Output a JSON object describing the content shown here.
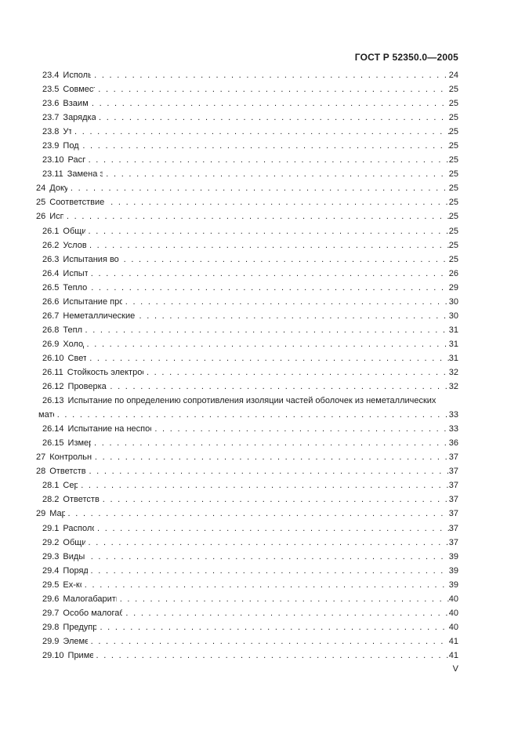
{
  "header": {
    "doc_code": "ГОСТ Р 52350.0—2005"
  },
  "footer": {
    "page_number": "V"
  },
  "toc": {
    "entries": [
      {
        "num": "23.4",
        "label": "Использование батарей",
        "page": "24",
        "level": 1
      },
      {
        "num": "23.5",
        "label": "Совместное использование",
        "page": "25",
        "level": 1
      },
      {
        "num": "23.6",
        "label": "Взаимозаменяемость",
        "page": "25",
        "level": 1
      },
      {
        "num": "23.7",
        "label": "Зарядка первичных батарей",
        "page": "25",
        "level": 1
      },
      {
        "num": "23.8",
        "label": "Утечка",
        "page": "25",
        "level": 1
      },
      {
        "num": "23.9",
        "label": "Подключение",
        "page": "25",
        "level": 1
      },
      {
        "num": "23.10",
        "label": "Расположение",
        "page": "25",
        "level": 1
      },
      {
        "num": "23.11",
        "label": "Замена элементов или батарей",
        "page": "25",
        "level": 1
      },
      {
        "num": "24",
        "label": "Документация",
        "page": "25",
        "level": 0
      },
      {
        "num": "25",
        "label": "Соответствие прототипа или образца документации",
        "page": "25",
        "level": 0
      },
      {
        "num": "26",
        "label": "Испытания",
        "page": "25",
        "level": 0
      },
      {
        "num": "26.1",
        "label": "Общие положения",
        "page": "25",
        "level": 1
      },
      {
        "num": "26.2",
        "label": "Условия испытаний",
        "page": "25",
        "level": 1
      },
      {
        "num": "26.3",
        "label": "Испытания во взрывоопасных испытательных смесях",
        "page": "25",
        "level": 1
      },
      {
        "num": "26.4",
        "label": "Испытание оболочек",
        "page": "26",
        "level": 1
      },
      {
        "num": "26.5",
        "label": "Тепловые испытания",
        "page": "29",
        "level": 1
      },
      {
        "num": "26.6",
        "label": "Испытание проходных изоляторов крутящим моментом",
        "page": "30",
        "level": 1
      },
      {
        "num": "26.7",
        "label": "Неметаллические оболочки или неметаллические части иных оболочек",
        "page": "30",
        "level": 1
      },
      {
        "num": "26.8",
        "label": "Теплостойкость",
        "page": "31",
        "level": 1
      },
      {
        "num": "26.9",
        "label": "Холодостойкость",
        "page": "31",
        "level": 1
      },
      {
        "num": "26.10",
        "label": "Светостойкость",
        "page": "31",
        "level": 1
      },
      {
        "num": "26.11",
        "label": "Стойкость электрооборудования группы I к воздействию химических агентов",
        "page": "32",
        "level": 1
      },
      {
        "num": "26.12",
        "label": "Проверка целостности заземления",
        "page": "32",
        "level": 1
      },
      {
        "num": "26.13",
        "label": "Испытание по определению сопротивления изоляции частей оболочек из неметаллических",
        "label2": "материалов",
        "page": "33",
        "level": 1
      },
      {
        "num": "26.14",
        "label": "Испытание на неспособность накапливать опасный заряд статического электричества",
        "page": "33",
        "level": 1
      },
      {
        "num": "26.15",
        "label": "Измерение емкости",
        "page": "36",
        "level": 1
      },
      {
        "num": "27",
        "label": "Контрольные проверки и испытания",
        "page": "37",
        "level": 0
      },
      {
        "num": "28",
        "label": "Ответственность изготовителя",
        "page": "37",
        "level": 0
      },
      {
        "num": "28.1",
        "label": "Сертификат",
        "page": "37",
        "level": 1
      },
      {
        "num": "28.2",
        "label": "Ответственность за маркировку",
        "page": "37",
        "level": 1
      },
      {
        "num": "29",
        "label": "Маркировка",
        "page": "37",
        "level": 0
      },
      {
        "num": "29.1",
        "label": "Расположение маркировки",
        "page": "37",
        "level": 1
      },
      {
        "num": "29.2",
        "label": "Общие положения",
        "page": "37",
        "level": 1
      },
      {
        "num": "29.3",
        "label": "Виды взрывозащиты",
        "page": "39",
        "level": 1
      },
      {
        "num": "29.4",
        "label": "Порядок маркировки",
        "page": "39",
        "level": 1
      },
      {
        "num": "29.5",
        "label": "Ex-компоненты",
        "page": "39",
        "level": 1
      },
      {
        "num": "29.6",
        "label": "Малогабаритные оборудование и Ex-компоненты",
        "page": "40",
        "level": 1
      },
      {
        "num": "29.7",
        "label": "Особо малогабаритные оборудование и Ex-компоненты",
        "page": "40",
        "level": 1
      },
      {
        "num": "29.8",
        "label": "Предупредительные надписи",
        "page": "40",
        "level": 1
      },
      {
        "num": "29.9",
        "label": "Элементы и батареи",
        "page": "41",
        "level": 1
      },
      {
        "num": "29.10",
        "label": "Примеры маркировки",
        "page": "41",
        "level": 1
      }
    ]
  }
}
